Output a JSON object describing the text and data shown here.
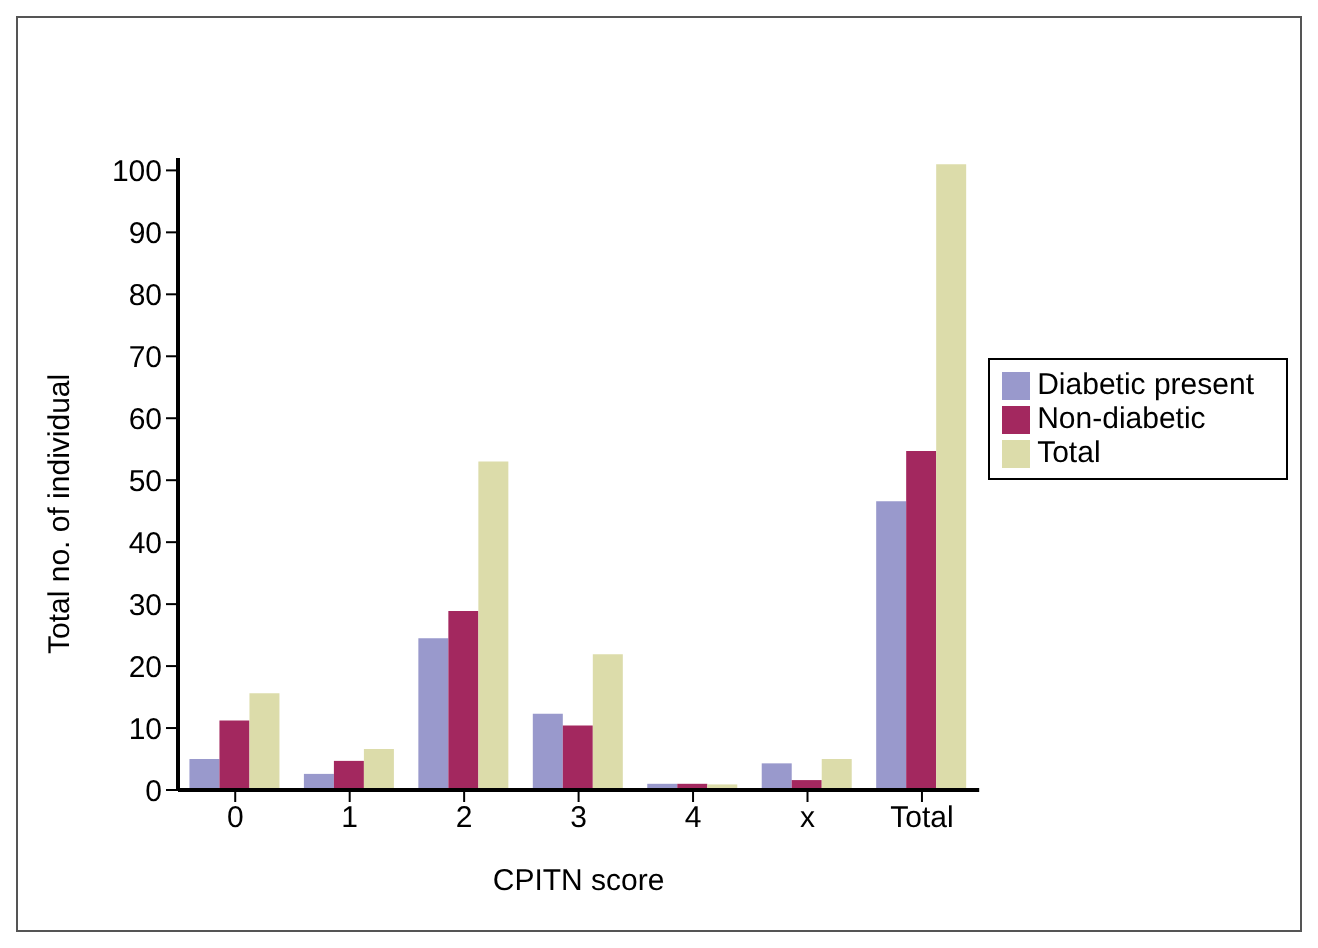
{
  "chart_data": {
    "type": "bar",
    "xlabel": "CPITN score",
    "ylabel": "Total no. of individual",
    "categories": [
      "0",
      "1",
      "2",
      "3",
      "4",
      "x",
      "Total"
    ],
    "series": [
      {
        "name": "Diabetic present",
        "color": "#9999cc",
        "values": [
          5,
          2.6,
          24.5,
          12.3,
          1,
          4.3,
          46.6
        ]
      },
      {
        "name": "Non-diabetic",
        "color": "#a3285f",
        "values": [
          11.2,
          4.7,
          28.9,
          10.4,
          1,
          1.6,
          54.7
        ]
      },
      {
        "name": "Total",
        "color": "#dcdcaa",
        "values": [
          15.6,
          6.6,
          53,
          21.9,
          0.9,
          5,
          101
        ]
      }
    ],
    "ylim": [
      0,
      102
    ],
    "yticks": [
      0,
      10,
      20,
      30,
      40,
      50,
      60,
      70,
      80,
      90,
      100
    ],
    "grid": false,
    "legend": "right"
  }
}
